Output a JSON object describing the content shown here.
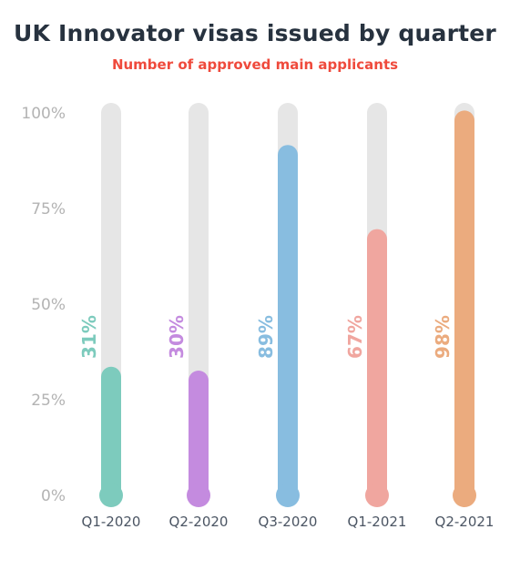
{
  "chart_data": {
    "type": "bar",
    "title": "UK Innovator visas issued by quarter",
    "subtitle": "Number of approved main applicants",
    "categories": [
      "Q1-2020",
      "Q2-2020",
      "Q3-2020",
      "Q1-2021",
      "Q2-2021"
    ],
    "values": [
      31,
      30,
      89,
      67,
      98
    ],
    "value_labels": [
      "31%",
      "30%",
      "89%",
      "67%",
      "98%"
    ],
    "colors": [
      "#7dcbbd",
      "#c48bdf",
      "#88bde0",
      "#f0a69f",
      "#ebab7e"
    ],
    "track_color": "#e6e6e6",
    "yticks": [
      "0%",
      "25%",
      "50%",
      "75%",
      "100%"
    ],
    "ylim": [
      0,
      100
    ],
    "grid": false,
    "legend": "none"
  }
}
